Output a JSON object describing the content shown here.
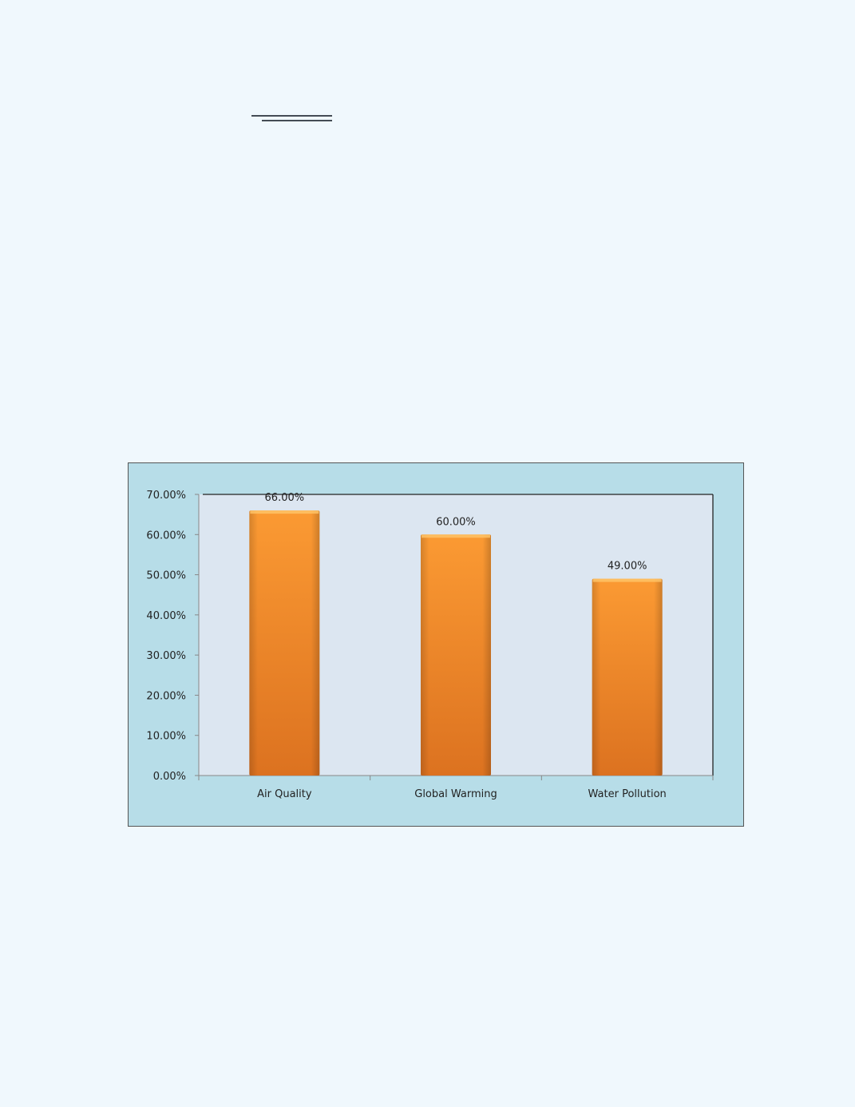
{
  "chart_data": {
    "type": "bar",
    "categories": [
      "Air Quality",
      "Global Warming",
      "Water Pollution"
    ],
    "values": [
      66.0,
      60.0,
      49.0
    ],
    "data_labels": [
      "66.00%",
      "60.00%",
      "49.00%"
    ],
    "yticks": [
      "0.00%",
      "10.00%",
      "20.00%",
      "30.00%",
      "40.00%",
      "50.00%",
      "60.00%",
      "70.00%"
    ],
    "ylim": [
      0,
      70
    ],
    "title": "",
    "xlabel": "",
    "ylabel": "",
    "grid": false,
    "legend": "none",
    "colors": {
      "bar": "#f7922f",
      "bar_dark": "#e0761f",
      "plot_bg": "#dce6f1",
      "chart_bg": "#b7dde8",
      "page_bg": "#f0f8fd"
    }
  }
}
